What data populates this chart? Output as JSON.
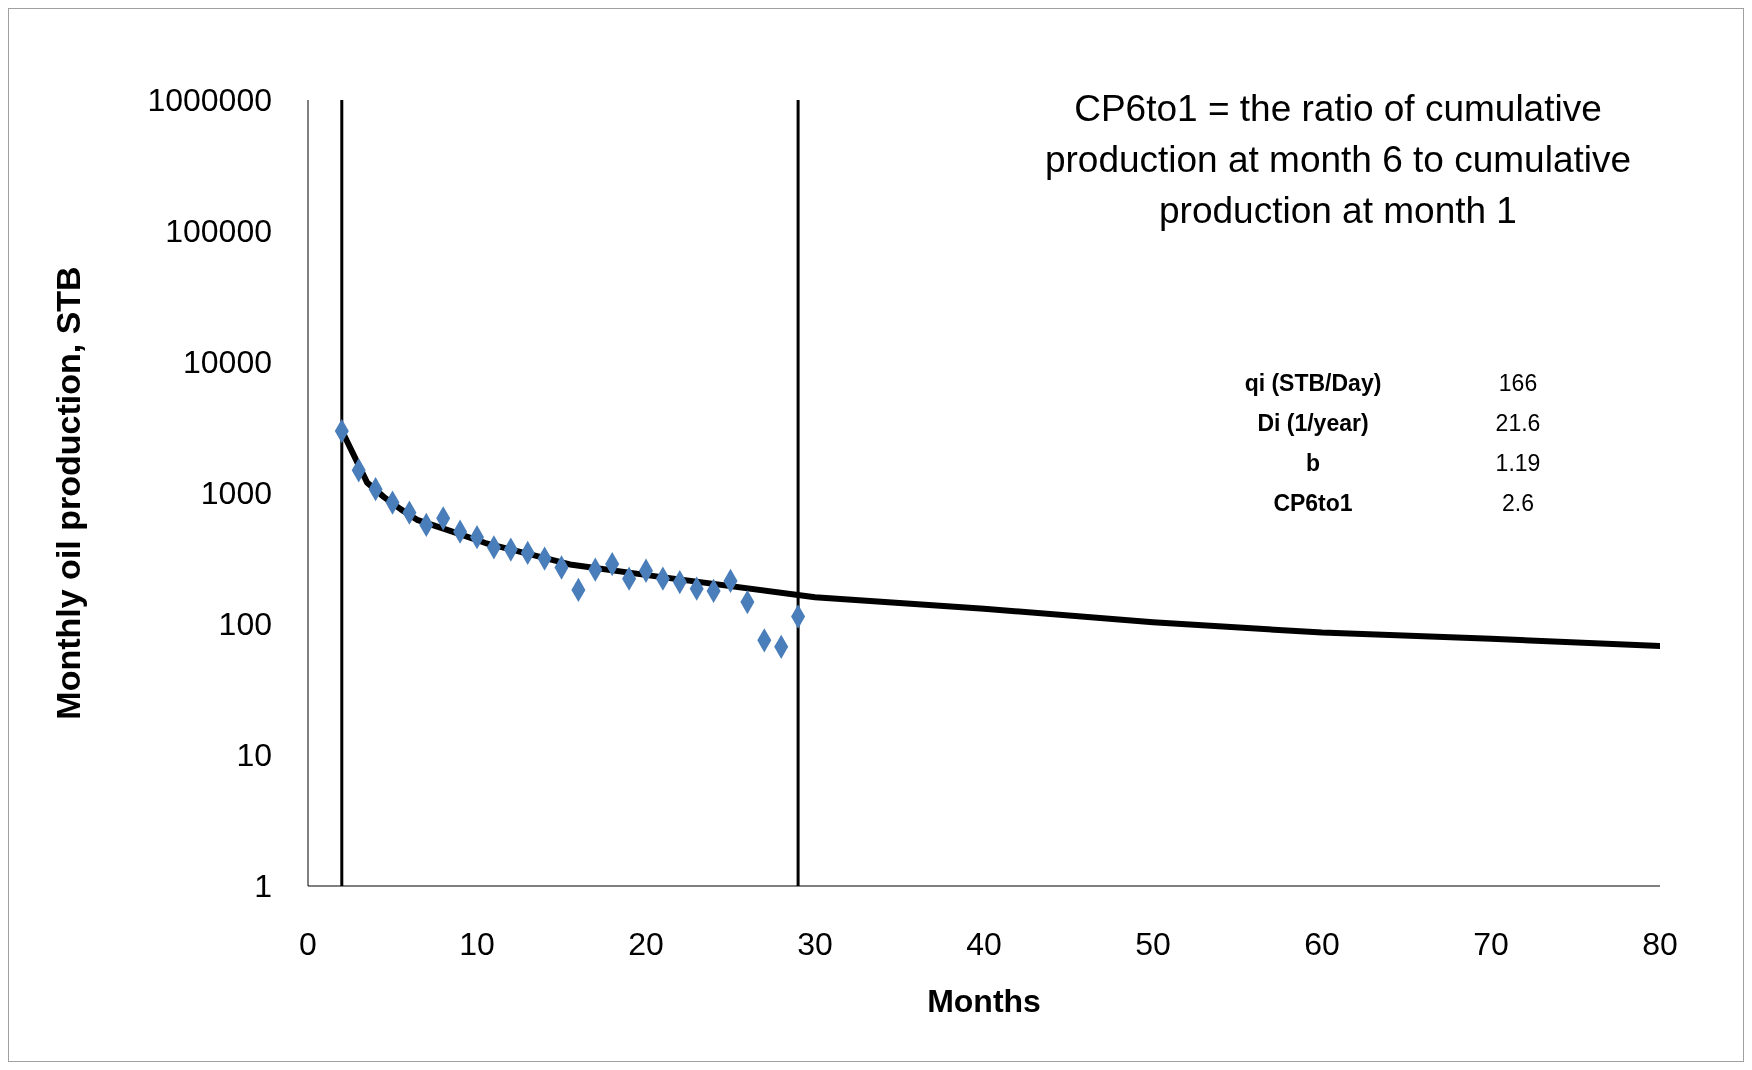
{
  "chart_data": {
    "type": "scatter",
    "xlabel": "Months",
    "ylabel": "Monthly oil production, STB",
    "annotations": [
      "CP6to1 = the ratio of cumulative production at month 6 to cumulative production at month 1",
      "qi (STB/Day)",
      "166",
      "Di (1/year)",
      "21.6",
      "b",
      "1.19",
      "CP6to1",
      "2.6"
    ],
    "series": [
      {
        "color": "#4a7ebb",
        "marker": "diamond",
        "x": [
          2,
          3,
          4,
          5,
          6,
          7,
          8,
          9,
          10,
          11,
          12,
          13,
          14,
          15,
          16,
          17,
          18,
          19,
          20,
          21,
          22,
          23,
          24,
          25,
          26,
          27,
          28,
          29
        ],
        "values": [
          2970,
          1490,
          1070,
          845,
          708,
          570,
          641,
          507,
          460,
          385,
          370,
          349,
          316,
          270,
          182,
          260,
          287,
          222,
          255,
          222,
          209,
          186,
          179,
          213,
          147,
          75,
          67,
          114
        ]
      },
      {
        "type": "line",
        "color": "#000000",
        "marker": "none",
        "x": [
          2,
          3.5,
          4.5,
          5.5,
          6.5,
          8.5,
          10.5,
          15.5,
          20.5,
          30,
          40,
          50,
          60,
          70,
          80
        ],
        "values": [
          3000,
          1200,
          930,
          750,
          620,
          510,
          415,
          285,
          232,
          160,
          131,
          103,
          86,
          77,
          68
        ]
      }
    ],
    "ref_lines": [
      {
        "axis": "x",
        "value": 2,
        "color": "#000000"
      },
      {
        "axis": "x",
        "value": 29,
        "color": "#000000"
      }
    ],
    "log": "y",
    "grid": false,
    "xlim": [
      0,
      80
    ],
    "xticks": [
      0,
      10,
      20,
      30,
      40,
      50,
      60,
      70,
      80
    ],
    "ylim": [
      1,
      1000000
    ],
    "yticks": [
      1,
      10,
      100,
      1000,
      10000,
      100000,
      1000000
    ]
  }
}
